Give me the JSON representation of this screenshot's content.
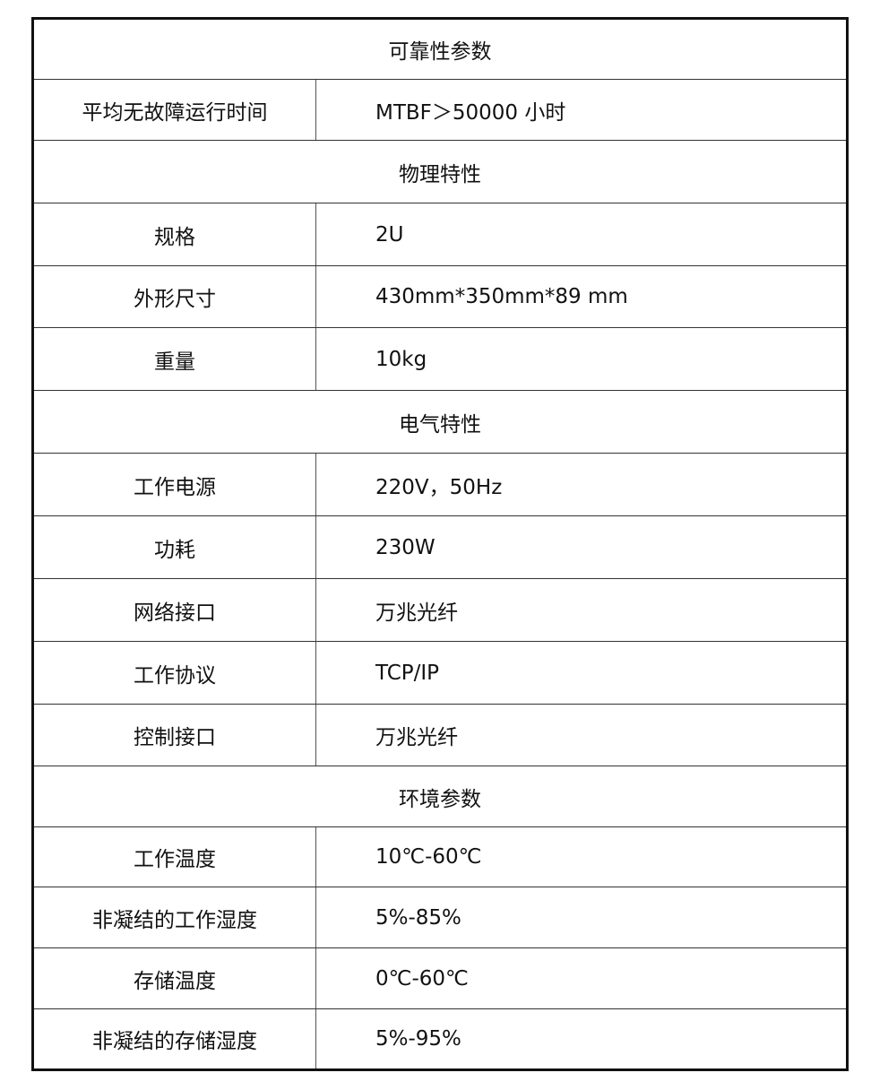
{
  "rows": [
    {
      "type": "section",
      "title": "可靠性参数"
    },
    {
      "type": "param",
      "label": "平均无故障运行时间",
      "value": "MTBF＞50000 小时"
    },
    {
      "type": "section",
      "title": "物理特性"
    },
    {
      "type": "param",
      "label": "规格",
      "value": "2U"
    },
    {
      "type": "param",
      "label": "外形尺寸",
      "value": "430mm*350mm*89 mm"
    },
    {
      "type": "param",
      "label": "重量",
      "value": "10kg"
    },
    {
      "type": "section",
      "title": "电气特性"
    },
    {
      "type": "param",
      "label": "工作电源",
      "value": "220V，50Hz"
    },
    {
      "type": "param",
      "label": "功耗",
      "value": "230W"
    },
    {
      "type": "param",
      "label": "网络接口",
      "value": "万兆光纤"
    },
    {
      "type": "param",
      "label": "工作协议",
      "value": "TCP/IP"
    },
    {
      "type": "param",
      "label": "控制接口",
      "value": "万兆光纤"
    },
    {
      "type": "section",
      "title": "环境参数"
    },
    {
      "type": "param",
      "label": "工作温度",
      "value": "10℃-60℃"
    },
    {
      "type": "param",
      "label": "非凝结的工作湿度",
      "value": "5%-85%"
    },
    {
      "type": "param",
      "label": "存储温度",
      "value": "0℃-60℃"
    },
    {
      "type": "param",
      "label": "非凝结的存储湿度",
      "value": "5%-95%"
    }
  ]
}
